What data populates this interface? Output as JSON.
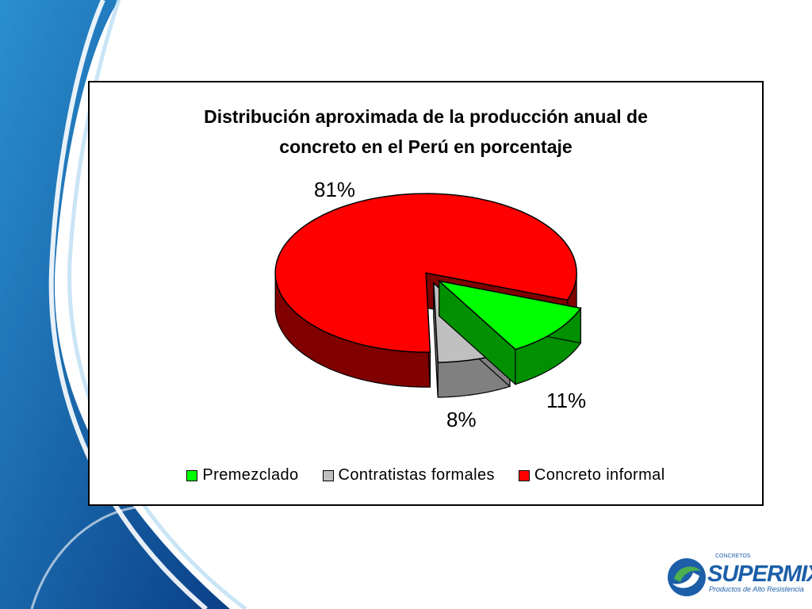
{
  "chart_data": {
    "type": "pie",
    "title": "Distribución aproximada de la producción anual de concreto en el Perú en porcentaje",
    "title_lines": [
      "Distribución aproximada de la producción anual de",
      "concreto en el Perú en porcentaje"
    ],
    "categories": [
      "Premezclado",
      "Contratistas formales",
      "Concreto informal"
    ],
    "values": [
      11,
      8,
      81
    ],
    "value_labels": [
      "11%",
      "8%",
      "81%"
    ],
    "colors": [
      "#00ff00",
      "#c0c0c0",
      "#ff0000"
    ],
    "side_colors": [
      "#009000",
      "#808080",
      "#800000"
    ],
    "exploded": true,
    "three_d": true,
    "legend_position": "bottom"
  },
  "logo": {
    "small_text": "CONCRETOS",
    "name": "SUPERMIX",
    "tagline": "Productos de Alto Resistencia"
  },
  "theme": {
    "accent": "#1c5fa8",
    "swoosh_dark": "#0a3f86",
    "swoosh_light": "#2a8fd0"
  }
}
